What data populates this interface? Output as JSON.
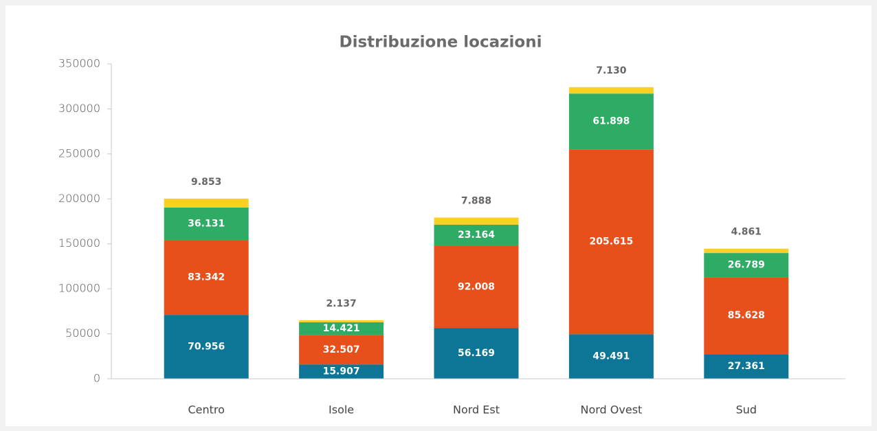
{
  "chart_data": {
    "type": "stacked_bar",
    "title": "Distribuzione locazioni",
    "categories": [
      "Centro",
      "Isole",
      "Nord Est",
      "Nord Ovest",
      "Sud"
    ],
    "series": [
      {
        "color": "#0d7595",
        "values": [
          70956,
          15907,
          56169,
          49491,
          27361
        ],
        "value_labels": [
          "70.956",
          "15.907",
          "56.169",
          "49.491",
          "27.361"
        ]
      },
      {
        "color": "#e8501b",
        "values": [
          83342,
          32507,
          92008,
          205615,
          85628
        ],
        "value_labels": [
          "83.342",
          "32.507",
          "92.008",
          "205.615",
          "85.628"
        ]
      },
      {
        "color": "#2eab64",
        "values": [
          36131,
          14421,
          23164,
          61898,
          26789
        ],
        "value_labels": [
          "36.131",
          "14.421",
          "23.164",
          "61.898",
          "26.789"
        ]
      },
      {
        "color": "#f9d023",
        "values": [
          9853,
          2137,
          7888,
          7130,
          4861
        ],
        "value_labels": [
          "9.853",
          "2.137",
          "7.888",
          "7.130",
          "4.861"
        ]
      }
    ],
    "ylim": [
      0,
      350000
    ],
    "yticks": [
      0,
      50000,
      100000,
      150000,
      200000,
      250000,
      300000,
      350000
    ]
  }
}
